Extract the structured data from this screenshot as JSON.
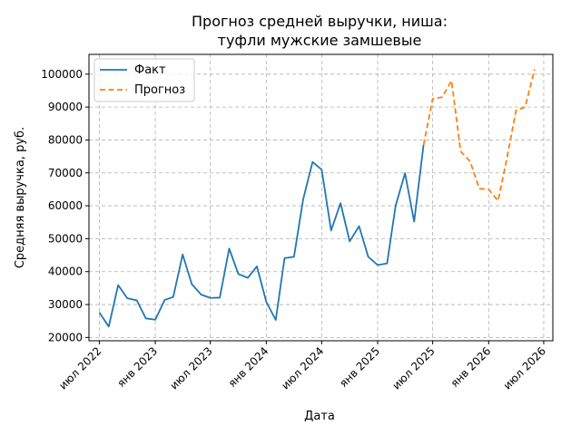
{
  "chart_data": {
    "type": "line",
    "title": "Прогноз средней выручки, ниша:\nтуфли мужские замшевые",
    "xlabel": "Дата",
    "ylabel": "Средняя выручка, руб.",
    "ylim": [
      19000,
      106000
    ],
    "xlim": [
      "2022-05-28",
      "2026-07-31"
    ],
    "x_ticks": [
      {
        "date": "2022-07-01",
        "label": "июл 2022"
      },
      {
        "date": "2023-01-01",
        "label": "янв 2023"
      },
      {
        "date": "2023-07-01",
        "label": "июл 2023"
      },
      {
        "date": "2024-01-01",
        "label": "янв 2024"
      },
      {
        "date": "2024-07-01",
        "label": "июл 2024"
      },
      {
        "date": "2025-01-01",
        "label": "янв 2025"
      },
      {
        "date": "2025-07-01",
        "label": "июл 2025"
      },
      {
        "date": "2026-01-01",
        "label": "янв 2026"
      },
      {
        "date": "2026-07-01",
        "label": "июл 2026"
      }
    ],
    "y_ticks": [
      20000,
      30000,
      40000,
      50000,
      60000,
      70000,
      80000,
      90000,
      100000
    ],
    "grid": true,
    "legend_position": "top-left",
    "series": [
      {
        "name": "Факт",
        "color": "#1f77b4",
        "style": "solid",
        "points": [
          [
            "2022-07-01",
            27600
          ],
          [
            "2022-08-01",
            23300
          ],
          [
            "2022-09-01",
            35900
          ],
          [
            "2022-10-01",
            31900
          ],
          [
            "2022-11-01",
            31300
          ],
          [
            "2022-12-01",
            25800
          ],
          [
            "2023-01-01",
            25400
          ],
          [
            "2023-02-01",
            31400
          ],
          [
            "2023-03-01",
            32300
          ],
          [
            "2023-04-01",
            45200
          ],
          [
            "2023-05-01",
            36200
          ],
          [
            "2023-06-01",
            33000
          ],
          [
            "2023-07-01",
            32000
          ],
          [
            "2023-08-01",
            32100
          ],
          [
            "2023-09-01",
            47000
          ],
          [
            "2023-10-01",
            39300
          ],
          [
            "2023-11-01",
            38100
          ],
          [
            "2023-12-01",
            41600
          ],
          [
            "2024-01-01",
            30800
          ],
          [
            "2024-02-01",
            25300
          ],
          [
            "2024-03-01",
            44100
          ],
          [
            "2024-04-01",
            44500
          ],
          [
            "2024-05-01",
            61900
          ],
          [
            "2024-06-01",
            73300
          ],
          [
            "2024-07-01",
            71000
          ],
          [
            "2024-08-01",
            52500
          ],
          [
            "2024-09-01",
            60800
          ],
          [
            "2024-10-01",
            49200
          ],
          [
            "2024-11-01",
            53800
          ],
          [
            "2024-12-01",
            44500
          ],
          [
            "2025-01-01",
            42000
          ],
          [
            "2025-02-01",
            42500
          ],
          [
            "2025-03-01",
            60000
          ],
          [
            "2025-04-01",
            69900
          ],
          [
            "2025-05-01",
            55200
          ],
          [
            "2025-06-01",
            78500
          ]
        ]
      },
      {
        "name": "Прогноз",
        "color": "#ff7f0e",
        "style": "dashed",
        "points": [
          [
            "2025-06-01",
            78500
          ],
          [
            "2025-07-01",
            92500
          ],
          [
            "2025-08-01",
            93000
          ],
          [
            "2025-09-01",
            98000
          ],
          [
            "2025-10-01",
            76500
          ],
          [
            "2025-11-01",
            73500
          ],
          [
            "2025-12-01",
            65200
          ],
          [
            "2026-01-01",
            65000
          ],
          [
            "2026-02-01",
            61500
          ],
          [
            "2026-03-01",
            74000
          ],
          [
            "2026-04-01",
            89000
          ],
          [
            "2026-05-01",
            90000
          ],
          [
            "2026-06-01",
            101500
          ]
        ]
      }
    ]
  }
}
